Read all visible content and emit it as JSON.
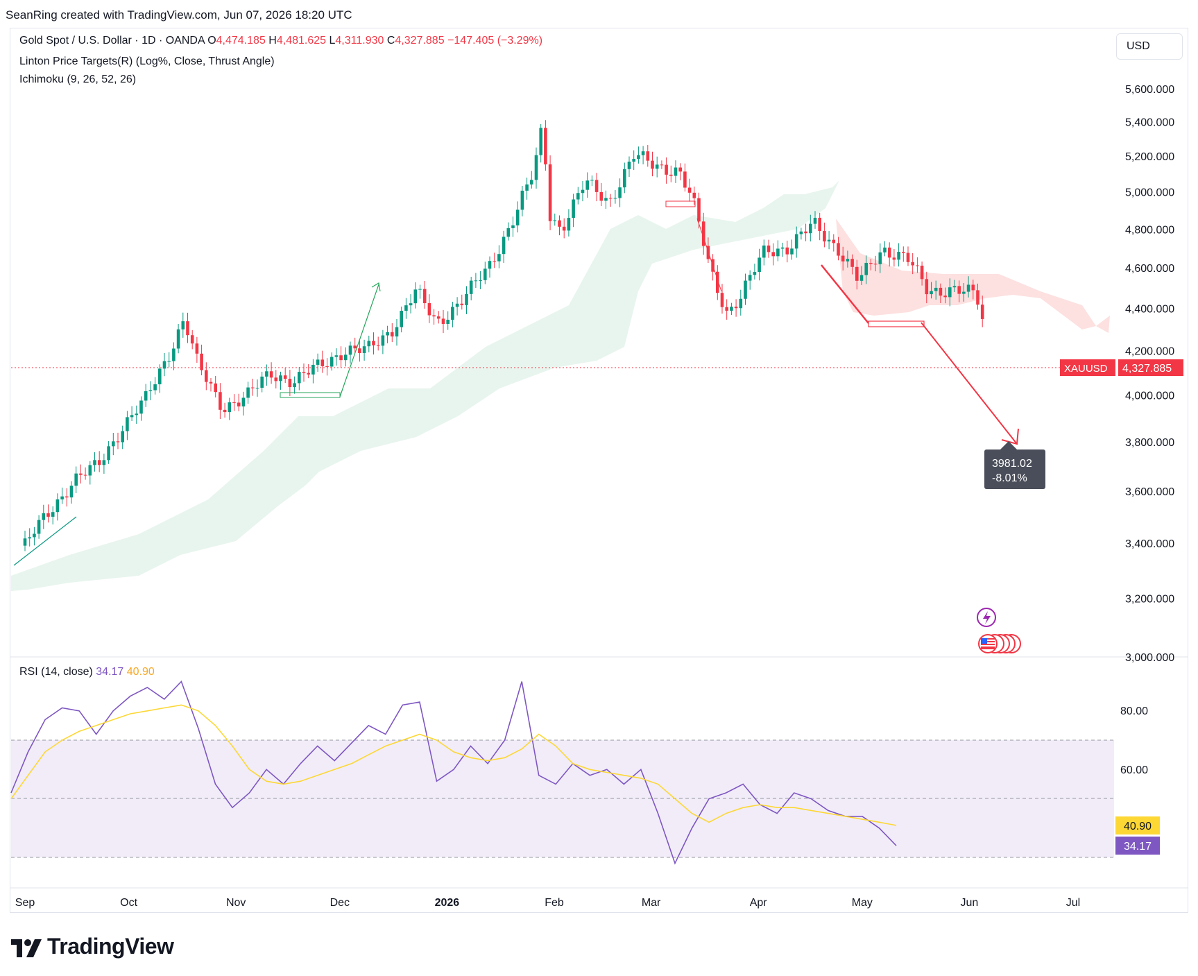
{
  "header": {
    "attribution": "SeanRing created with TradingView.com, Jun 07, 2026 18:20 UTC"
  },
  "legend": {
    "symbol_text": "Gold Spot / U.S. Dollar · 1D · OANDA",
    "o_label": "O",
    "o_value": "4,474.185",
    "h_label": "H",
    "h_value": "4,481.625",
    "l_label": "L",
    "l_value": "4,311.930",
    "c_label": "C",
    "c_value": "4,327.885",
    "change": "−147.405 (−3.29%)",
    "indicator1": "Linton Price Targets(R) (Log%, Close, Thrust Angle)",
    "indicator2": "Ichimoku (9, 26, 52, 26)"
  },
  "currency": "USD",
  "price_badge": {
    "symbol": "XAUUSD",
    "value": "4,327.885"
  },
  "target_label": {
    "price": "3981.02",
    "pct": "-8.01%"
  },
  "rsi": {
    "title": "RSI (14, close)",
    "rsi_value": "34.17",
    "ma_value": "40.90"
  },
  "brand": "TradingView",
  "colors": {
    "up": "#089981",
    "down": "#f23645",
    "rsi_line": "#7e57c2",
    "rsi_ma": "#fdd835",
    "cloud_up": "#e8f5ee",
    "cloud_down": "#fde0e0",
    "badge": "#f23645",
    "target_box": "#4a4e5a"
  },
  "chart_data": [
    {
      "type": "candlestick",
      "title": "Gold Spot / U.S. Dollar · 1D · OANDA",
      "y_scale": "log",
      "ylim": [
        3000,
        5700
      ],
      "y_ticks": [
        "5,600.000",
        "5,400.000",
        "5,200.000",
        "5,000.000",
        "4,800.000",
        "4,600.000",
        "4,400.000",
        "4,200.000",
        "4,000.000",
        "3,800.000",
        "3,600.000",
        "3,400.000",
        "3,200.000",
        "3,000.000"
      ],
      "x_ticks": [
        "Sep",
        "Oct",
        "Nov",
        "Dec",
        "2026",
        "Feb",
        "Mar",
        "Apr",
        "May",
        "Jun",
        "Jul"
      ],
      "x_tick_values": [
        "2025-09-01",
        "2025-10-01",
        "2025-11-01",
        "2025-12-01",
        "2026-01-01",
        "2026-02-01",
        "2026-03-01",
        "2026-04-01",
        "2026-05-01",
        "2026-06-01",
        "2026-07-01"
      ],
      "close_path": [
        [
          "2025-09-01",
          3390
        ],
        [
          "2025-09-08",
          3520
        ],
        [
          "2025-09-15",
          3640
        ],
        [
          "2025-09-22",
          3700
        ],
        [
          "2025-09-29",
          3860
        ],
        [
          "2025-10-06",
          3980
        ],
        [
          "2025-10-13",
          4200
        ],
        [
          "2025-10-17",
          4350
        ],
        [
          "2025-10-21",
          4130
        ],
        [
          "2025-10-28",
          3950
        ],
        [
          "2025-11-04",
          3990
        ],
        [
          "2025-11-11",
          4100
        ],
        [
          "2025-11-18",
          4060
        ],
        [
          "2025-11-25",
          4130
        ],
        [
          "2025-12-02",
          4200
        ],
        [
          "2025-12-09",
          4200
        ],
        [
          "2025-12-16",
          4300
        ],
        [
          "2025-12-23",
          4480
        ],
        [
          "2025-12-29",
          4330
        ],
        [
          "2026-01-06",
          4450
        ],
        [
          "2026-01-13",
          4600
        ],
        [
          "2026-01-20",
          4850
        ],
        [
          "2026-01-26",
          5100
        ],
        [
          "2026-01-29",
          5420
        ],
        [
          "2026-01-30",
          4900
        ],
        [
          "2026-02-03",
          4800
        ],
        [
          "2026-02-10",
          5050
        ],
        [
          "2026-02-17",
          4950
        ],
        [
          "2026-02-24",
          5200
        ],
        [
          "2026-03-02",
          5150
        ],
        [
          "2026-03-09",
          5120
        ],
        [
          "2026-03-13",
          4950
        ],
        [
          "2026-03-18",
          4600
        ],
        [
          "2026-03-23",
          4380
        ],
        [
          "2026-03-27",
          4450
        ],
        [
          "2026-04-03",
          4700
        ],
        [
          "2026-04-10",
          4700
        ],
        [
          "2026-04-17",
          4830
        ],
        [
          "2026-04-24",
          4700
        ],
        [
          "2026-04-30",
          4530
        ],
        [
          "2026-05-07",
          4700
        ],
        [
          "2026-05-14",
          4650
        ],
        [
          "2026-05-20",
          4480
        ],
        [
          "2026-05-27",
          4500
        ],
        [
          "2026-06-03",
          4460
        ],
        [
          "2026-06-05",
          4328
        ]
      ],
      "ichimoku_cloud_note": "Cloud shown lagging below price through Feb, red cloud ahead from May",
      "price_target": {
        "from": 4515,
        "to": 3981.02,
        "pct": "-8.01%"
      },
      "last_price": 4327.885
    },
    {
      "type": "line",
      "title": "RSI (14, close)",
      "ylim": [
        25,
        95
      ],
      "y_ticks": [
        "80.00",
        "60.00"
      ],
      "bands": [
        70,
        50,
        30
      ],
      "series": [
        {
          "name": "RSI",
          "values": [
            52,
            66,
            77,
            81,
            80,
            72,
            80,
            85,
            88,
            84,
            90,
            74,
            55,
            47,
            52,
            60,
            55,
            62,
            68,
            63,
            69,
            75,
            72,
            82,
            83,
            56,
            60,
            68,
            62,
            70,
            90,
            58,
            55,
            62,
            58,
            60,
            55,
            60,
            45,
            28,
            40,
            50,
            52,
            55,
            48,
            45,
            52,
            50,
            46,
            44,
            44,
            40,
            34
          ]
        },
        {
          "name": "MA",
          "values": [
            50,
            58,
            66,
            70,
            73,
            75,
            77,
            79,
            80,
            81,
            82,
            80,
            75,
            68,
            60,
            56,
            55,
            56,
            58,
            60,
            62,
            65,
            68,
            70,
            72,
            70,
            66,
            64,
            63,
            64,
            67,
            72,
            68,
            62,
            60,
            59,
            58,
            57,
            55,
            50,
            45,
            42,
            45,
            47,
            48,
            47,
            47,
            46,
            45,
            44,
            43,
            42,
            40.9
          ]
        }
      ],
      "last_values": {
        "RSI": 34.17,
        "MA": 40.9
      }
    }
  ]
}
